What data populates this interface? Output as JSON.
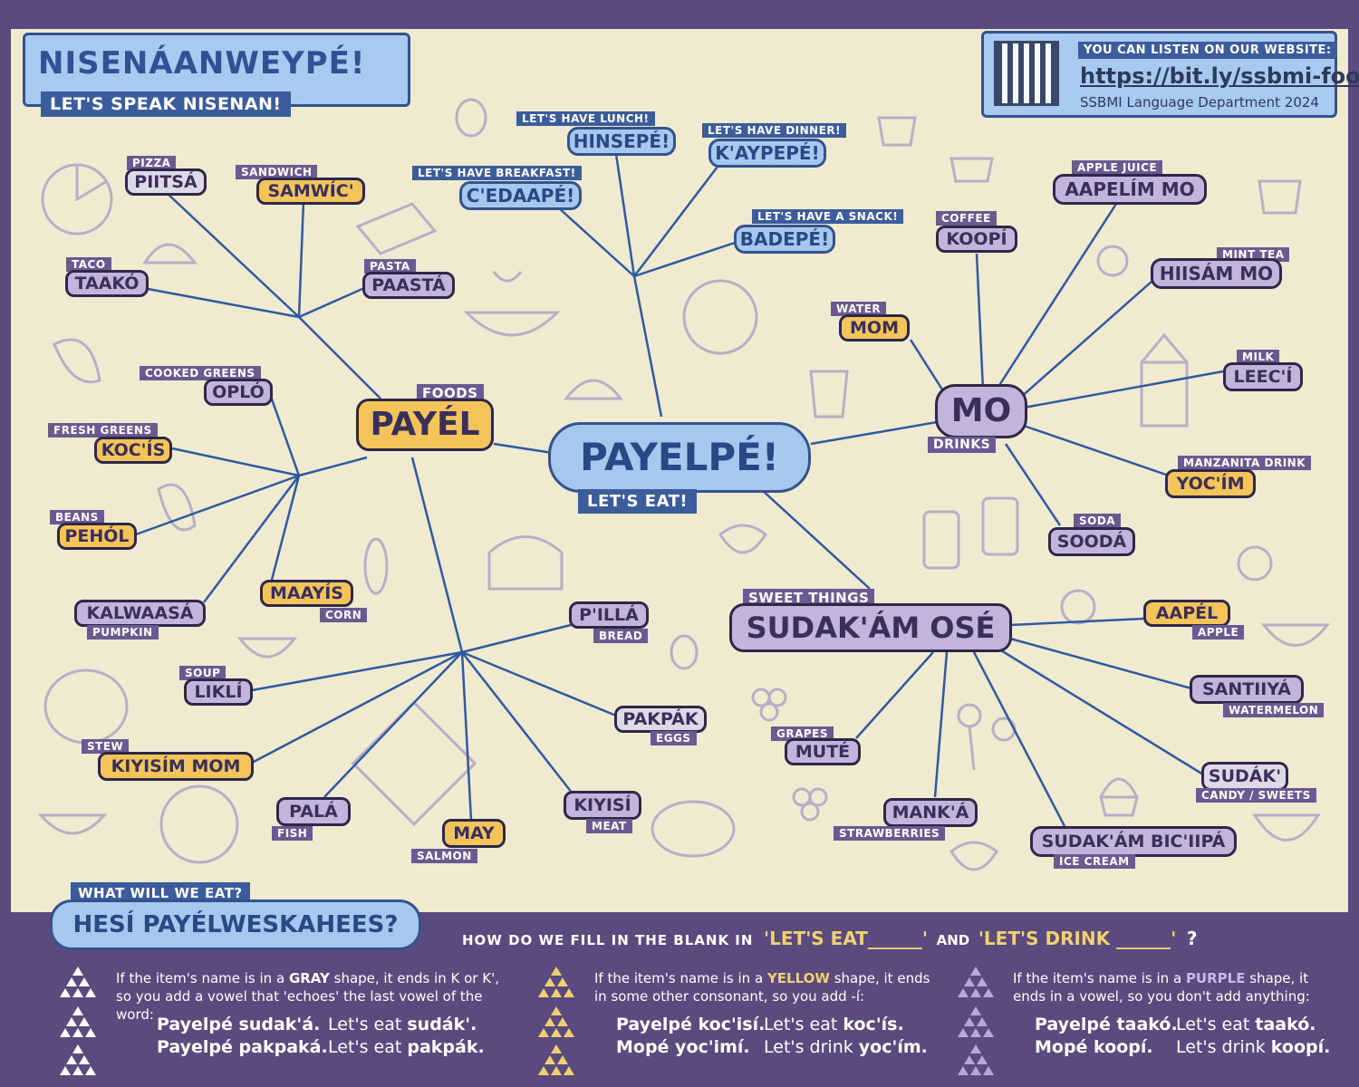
{
  "header": {
    "title": "NISENÁANWEYPÉ!",
    "subtitle": "LET'S SPEAK NISENAN!"
  },
  "website": {
    "caption": "YOU CAN LISTEN ON OUR WEBSITE:",
    "url": "https://bit.ly/ssbmi-food",
    "credit": "SSBMI Language Department 2024"
  },
  "center": {
    "label": "PAYELPÉ!",
    "sub": "LET'S EAT!"
  },
  "meals": [
    {
      "sub": "LET'S HAVE LUNCH!",
      "label": "HINSEPÉ!"
    },
    {
      "sub": "LET'S HAVE DINNER!",
      "label": "K'AYPEPÉ!"
    },
    {
      "sub": "LET'S HAVE BREAKFAST!",
      "label": "C'EDAAPÉ!"
    },
    {
      "sub": "LET'S HAVE A SNACK!",
      "label": "BADEPÉ!"
    }
  ],
  "foods_hub": {
    "label": "PAYÉL",
    "sub": "FOODS"
  },
  "foods": [
    {
      "sub": "PIZZA",
      "label": "PIITSÁ"
    },
    {
      "sub": "SANDWICH",
      "label": "SAMWÍC'"
    },
    {
      "sub": "TACO",
      "label": "TAAKÓ"
    },
    {
      "sub": "PASTA",
      "label": "PAASTÁ"
    },
    {
      "sub": "COOKED GREENS",
      "label": "OPLÓ"
    },
    {
      "sub": "FRESH GREENS",
      "label": "KOC'ÍS"
    },
    {
      "sub": "BEANS",
      "label": "PEHÓL"
    },
    {
      "sub": "CORN",
      "label": "MAAYÍS"
    },
    {
      "sub": "PUMPKIN",
      "label": "KALWAASÁ"
    }
  ],
  "more_foods": [
    {
      "sub": "BREAD",
      "label": "P'ILLÁ"
    },
    {
      "sub": "SOUP",
      "label": "LIKLÍ"
    },
    {
      "sub": "EGGS",
      "label": "PAKPÁK"
    },
    {
      "sub": "STEW",
      "label": "KIYISÍM MOM"
    },
    {
      "sub": "MEAT",
      "label": "KIYISÍ"
    },
    {
      "sub": "FISH",
      "label": "PALÁ"
    },
    {
      "sub": "SALMON",
      "label": "MAY"
    }
  ],
  "drinks_hub": {
    "label": "MO",
    "sub": "DRINKS"
  },
  "drinks": [
    {
      "sub": "COFFEE",
      "label": "KOOPÍ"
    },
    {
      "sub": "APPLE JUICE",
      "label": "AAPELÍM MO"
    },
    {
      "sub": "MINT TEA",
      "label": "HIISÁM MO"
    },
    {
      "sub": "WATER",
      "label": "MOM"
    },
    {
      "sub": "MILK",
      "label": "LEEC'Í"
    },
    {
      "sub": "MANZANITA DRINK",
      "label": "YOC'ÍM"
    },
    {
      "sub": "SODA",
      "label": "SOODÁ"
    }
  ],
  "sweets_hub": {
    "label": "SUDAK'ÁM OSÉ",
    "sub": "SWEET THINGS"
  },
  "sweets": [
    {
      "sub": "APPLE",
      "label": "AAPÉL"
    },
    {
      "sub": "WATERMELON",
      "label": "SANTIIYÁ"
    },
    {
      "sub": "GRAPES",
      "label": "MUTÉ"
    },
    {
      "sub": "CANDY / SWEETS",
      "label": "SUDÁK'"
    },
    {
      "sub": "STRAWBERRIES",
      "label": "MANK'Á"
    },
    {
      "sub": "ICE CREAM",
      "label": "SUDAK'ÁM BIC'IIPÁ"
    }
  ],
  "question": {
    "sub": "WHAT WILL WE EAT?",
    "label": "HESÍ PAYÉLWESKAHEES?"
  },
  "bottom_heading": {
    "prefix": "HOW DO WE FILL IN THE BLANK IN",
    "q1": "'LET'S EAT______'",
    "and": "AND",
    "q2": "'LET'S DRINK ______'",
    "qm": "?"
  },
  "rules": [
    {
      "pre": "If the item's name is in a",
      "color_word": "GRAY",
      "post": "shape, it ends in K or K', so you add a vowel that 'echoes' the last vowel of the word:",
      "examples": [
        {
          "nisenan": "Payelpé sudak'á.",
          "english": "Let's eat ",
          "english_word": "sudák'."
        },
        {
          "nisenan": "Payelpé pakpaká.",
          "english": "Let's eat ",
          "english_word": "pakpák."
        }
      ]
    },
    {
      "pre": "If the item's name is in a",
      "color_word": "YELLOW",
      "post": "shape, it ends in some other consonant, so you add -í:",
      "examples": [
        {
          "nisenan": "Payelpé koc'isí.",
          "english": "Let's eat ",
          "english_word": "koc'ís."
        },
        {
          "nisenan": "Mopé yoc'imí.",
          "english": "Let's drink ",
          "english_word": "yoc'ím."
        }
      ]
    },
    {
      "pre": "If the item's name is in a",
      "color_word": "PURPLE",
      "post": "shape, it ends in a vowel, so you don't add anything:",
      "examples": [
        {
          "nisenan": "Payelpé taakó.",
          "english": "Let's eat ",
          "english_word": "taakó."
        },
        {
          "nisenan": "Mopé koopí.",
          "english": "Let's drink ",
          "english_word": "koopí."
        }
      ]
    }
  ],
  "colors": {
    "gray": "#ddd9e6",
    "yellow": "#f3c45a",
    "purple": "#c2b4db",
    "blue": "#a6c8ee",
    "line": "#2f5aa0",
    "panel": "#5b4a7e",
    "parchment": "#f0ead0"
  }
}
